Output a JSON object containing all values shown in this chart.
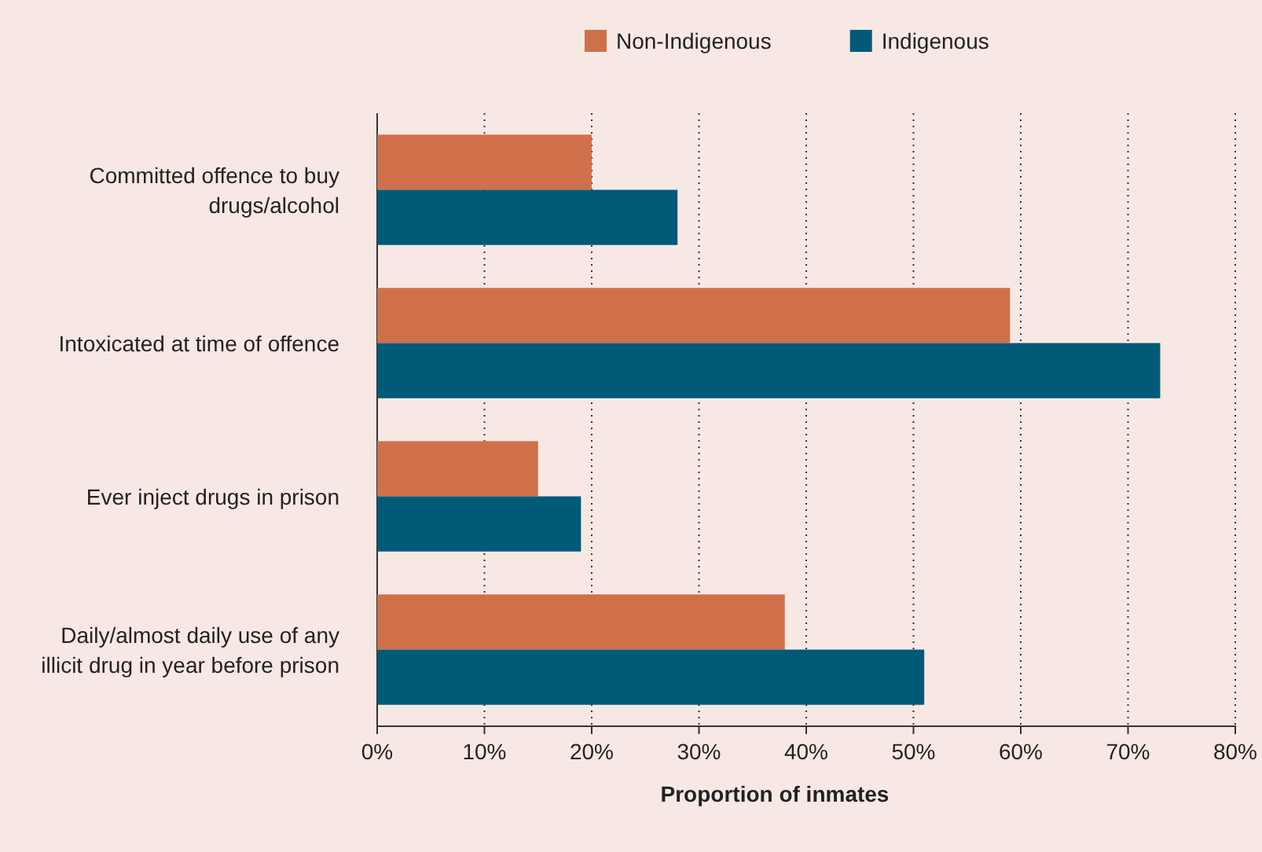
{
  "chart_data": {
    "type": "bar",
    "orientation": "horizontal",
    "xlabel": "Proportion of inmates",
    "categories": [
      "Committed offence to buy drugs/alcohol",
      "Intoxicated at time of offence",
      "Ever inject drugs in prison",
      "Daily/almost daily use of any illicit drug in year before prison"
    ],
    "series": [
      {
        "name": "Non-Indigenous",
        "color": "#d0704a",
        "values": [
          20,
          59,
          15,
          38
        ]
      },
      {
        "name": "Indigenous",
        "color": "#005a78",
        "values": [
          28,
          73,
          19,
          51
        ]
      }
    ],
    "xlim": [
      0,
      80
    ],
    "xticks": [
      {
        "value": 0,
        "label": "0%"
      },
      {
        "value": 10,
        "label": "10%"
      },
      {
        "value": 20,
        "label": "20%"
      },
      {
        "value": 30,
        "label": "30%"
      },
      {
        "value": 40,
        "label": "40%"
      },
      {
        "value": 50,
        "label": "50%"
      },
      {
        "value": 60,
        "label": "60%"
      },
      {
        "value": 70,
        "label": "70%"
      },
      {
        "value": 80,
        "label": "80%"
      }
    ],
    "grid": "x",
    "legend": "top"
  }
}
